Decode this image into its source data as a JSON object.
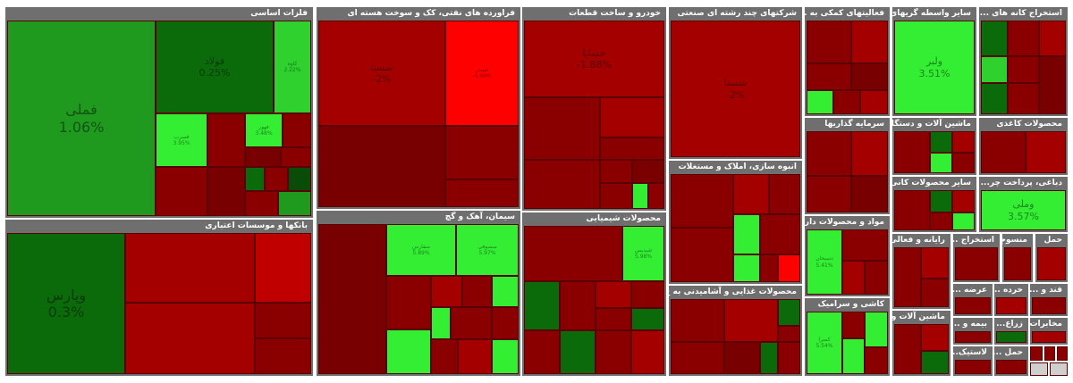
{
  "colors": {
    "strong_green": "#33ee33",
    "green": "#1f9a1f",
    "dark_green": "#0b6b0b",
    "red": "#a50000",
    "strong_red": "#ff0000",
    "header_gray": "#6f6f6f"
  },
  "sectors": {
    "metals": {
      "title": "فلزات اساسی",
      "cells": {
        "fameli": {
          "name": "فملی",
          "pct": "1.06%"
        },
        "foolad": {
          "name": "فولاد",
          "pct": "0.25%"
        },
        "kave": {
          "name": "کاوه",
          "pct": "2.22%"
        },
        "fesarmad": {
          "name": "فسرب",
          "pct": "3.95%"
        },
        "fhoor": {
          "name": "فهور",
          "pct": "3.48%"
        }
      }
    },
    "banks": {
      "title": "بانکها و موسسات اعتباری",
      "cells": {
        "vbazar": {
          "name": "وپارس",
          "pct": "0.3%"
        }
      }
    },
    "refinery": {
      "title": "فراورده های نفتی، کک و سوخت هسته ای",
      "cells": {
        "shiraz": {
          "name": "شستا",
          "pct": "-2%"
        },
        "shbandar": {
          "name": "شبندر",
          "pct": "-4.99%"
        }
      }
    },
    "auto": {
      "title": "خودرو و ساخت قطعات",
      "cells": {
        "khsapa": {
          "name": "خساپا",
          "pct": "-1.88%"
        }
      }
    },
    "multi": {
      "title": "شرکتهای چند رشته ای صنعتی",
      "cells": {
        "shasta": {
          "name": "شستا",
          "pct": "-2%"
        }
      }
    },
    "support": {
      "title": "فعالیتهای کمکی به ..."
    },
    "transport": {
      "title": "سایر واسطه گریهای ...",
      "cells": {
        "vlbr": {
          "name": "ولبر",
          "pct": "3.51%"
        }
      }
    },
    "mining": {
      "title": "استخراج کانه های ..."
    },
    "cement": {
      "title": "سیمان، آهک و گچ",
      "cells": {
        "sfars": {
          "name": "سفارس",
          "pct": "5.89%"
        },
        "ssofian": {
          "name": "سصوفی",
          "pct": "5.97%"
        }
      }
    },
    "chemical": {
      "title": "محصولات شیمیایی",
      "cells": {
        "shapdis": {
          "name": "شپدیس",
          "pct": "5.98%"
        }
      }
    },
    "construction": {
      "title": "انبوه سازی، املاک و مستغلات"
    },
    "food": {
      "title": "محصولات غذایی و آشامیدنی به ج..."
    },
    "investment": {
      "title": "سرمایه گذاریها"
    },
    "machinery": {
      "title": "ماشین آلات و دستگا..."
    },
    "paper": {
      "title": "محصولات کاغذی"
    },
    "pharma": {
      "title": "مواد و محصولات دارو...",
      "cells": {
        "dsobhan": {
          "name": "دسبحان",
          "pct": "5.41%"
        }
      }
    },
    "othermineral": {
      "title": "سایر محصولات کانی..."
    },
    "tanning": {
      "title": "دباغی، پرداخت چر...",
      "cells": {
        "vmelli": {
          "name": "وملی",
          "pct": "3.57%"
        }
      }
    },
    "tiles": {
      "title": "کاشی و سرامیک",
      "cells": {
        "kasra": {
          "name": "کسرا",
          "pct": "5.54%"
        }
      }
    },
    "computer": {
      "title": "رایانه و فعالی..."
    },
    "extract": {
      "title": "استخراج ..."
    },
    "textile": {
      "title": "منسوجات"
    },
    "telecom": {
      "title": "مخابرات"
    },
    "elec": {
      "title": "ماشین آلات و ..."
    },
    "retail": {
      "title": "عرضه ..."
    },
    "wholesale": {
      "title": "خرده ..."
    },
    "sugar": {
      "title": "قند و ..."
    },
    "insurance": {
      "title": "بیمه و ..."
    },
    "farm": {
      "title": "زراع..."
    },
    "rubber": {
      "title": "لاستیک..."
    },
    "trans2": {
      "title": "حمل ..."
    },
    "hotel": {
      "title": "حمل"
    }
  }
}
